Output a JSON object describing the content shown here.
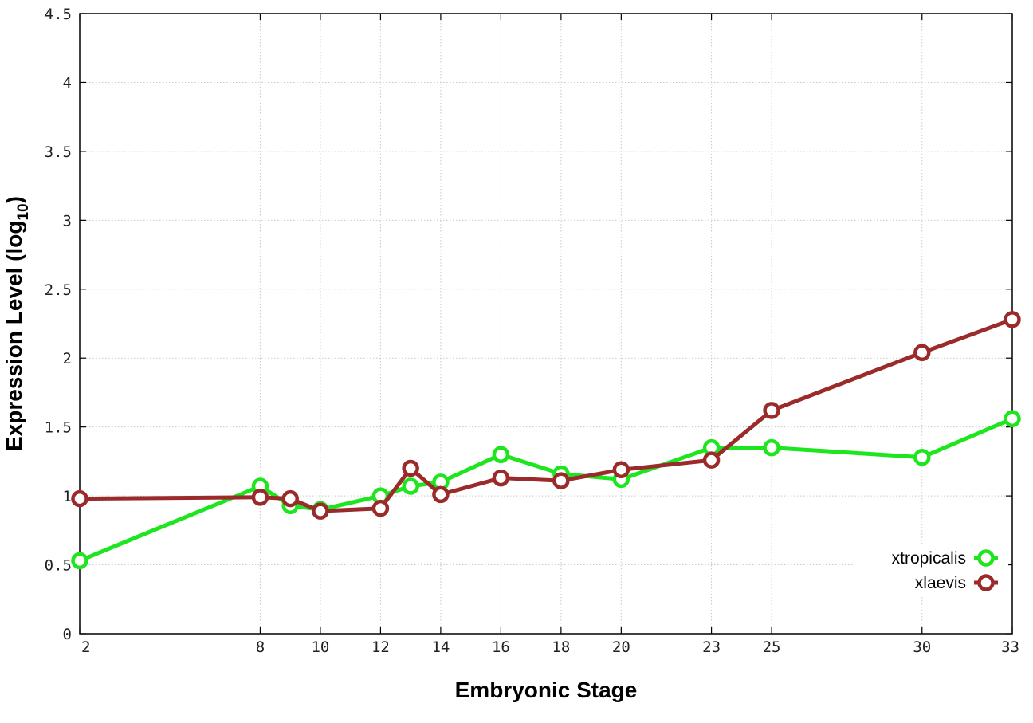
{
  "chart_data": {
    "type": "line",
    "title": "",
    "xlabel": "Embryonic Stage",
    "ylabel_main": "Expression Level (log",
    "ylabel_sub": "10",
    "ylabel_close": ")",
    "x": [
      2,
      8,
      9,
      10,
      12,
      13,
      14,
      16,
      18,
      20,
      23,
      25,
      30,
      33
    ],
    "x_ticks": [
      2,
      8,
      10,
      12,
      14,
      16,
      18,
      20,
      23,
      25,
      30,
      33
    ],
    "x_tick_labels": [
      "2",
      "8",
      "10",
      "12",
      "14",
      "16",
      "18",
      "20",
      "23",
      "25",
      "30",
      "33"
    ],
    "y_ticks": [
      0,
      0.5,
      1,
      1.5,
      2,
      2.5,
      3,
      3.5,
      4,
      4.5
    ],
    "y_tick_labels": [
      "0",
      "0.5",
      "1",
      "1.5",
      "2",
      "2.5",
      "3",
      "3.5",
      "4",
      "4.5"
    ],
    "xlim": [
      2,
      33
    ],
    "ylim": [
      0,
      4.5
    ],
    "grid": true,
    "legend_position": "bottom-right",
    "series": [
      {
        "name": "xtropicalis",
        "color": "#1ee61e",
        "values": [
          0.53,
          1.07,
          0.93,
          0.9,
          1.0,
          1.07,
          1.1,
          1.3,
          1.16,
          1.12,
          1.35,
          1.35,
          1.28,
          1.56
        ]
      },
      {
        "name": "xlaevis",
        "color": "#9b2a2a",
        "values": [
          0.98,
          0.99,
          0.98,
          0.89,
          0.91,
          1.2,
          1.01,
          1.13,
          1.11,
          1.19,
          1.26,
          1.62,
          2.04,
          2.28
        ]
      }
    ]
  }
}
